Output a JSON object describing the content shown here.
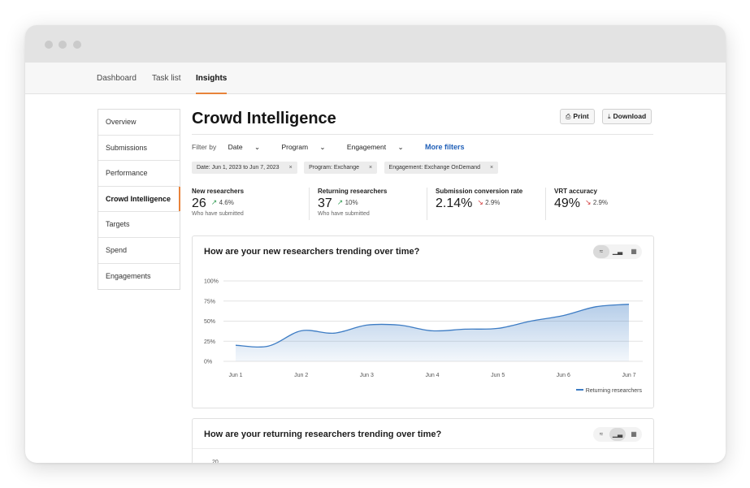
{
  "nav": {
    "tabs": [
      {
        "label": "Dashboard"
      },
      {
        "label": "Task list"
      },
      {
        "label": "Insights"
      }
    ]
  },
  "sidebar": {
    "items": [
      {
        "label": "Overview"
      },
      {
        "label": "Submissions"
      },
      {
        "label": "Performance"
      },
      {
        "label": "Crowd Intelligence"
      },
      {
        "label": "Targets"
      },
      {
        "label": "Spend"
      },
      {
        "label": "Engagements"
      }
    ]
  },
  "page": {
    "title": "Crowd Intelligence",
    "print_label": "Print",
    "download_label": "Download"
  },
  "filters": {
    "filter_by": "Filter by",
    "date": "Date",
    "program": "Program",
    "engagement": "Engagement",
    "more": "More filters",
    "chips": [
      {
        "label": "Date: Jun 1, 2023 to Jun 7, 2023"
      },
      {
        "label": "Program: Exchange"
      },
      {
        "label": "Engagement: Exchange OnDemand"
      }
    ]
  },
  "metrics": [
    {
      "label": "New researchers",
      "value": "26",
      "delta": "4.6%",
      "trend": "up",
      "sub": "Who have submitted"
    },
    {
      "label": "Returning researchers",
      "value": "37",
      "delta": "10%",
      "trend": "up",
      "sub": "Who have submitted"
    },
    {
      "label": "Submission conversion rate",
      "value": "2.14%",
      "delta": "2.9%",
      "trend": "down",
      "sub": ""
    },
    {
      "label": "VRT accuracy",
      "value": "49%",
      "delta": "2.9%",
      "trend": "down",
      "sub": ""
    }
  ],
  "cards": {
    "new_title": "How are your new researchers trending over time?",
    "returning_title": "How are your returning researchers trending over time?",
    "returning_first_tick": "20"
  },
  "colors": {
    "accent": "#e8833a",
    "link": "#1f5fb8",
    "series": "#3d7cc4"
  },
  "chart_data": {
    "type": "area",
    "title": "How are your new researchers trending over time?",
    "x": [
      "Jun 1",
      "Jun 2",
      "Jun 3",
      "Jun 4",
      "Jun 5",
      "Jun 6",
      "Jun 7"
    ],
    "y_ticks": [
      "100%",
      "75%",
      "50%",
      "25%",
      "0%"
    ],
    "ylim": [
      0,
      100
    ],
    "grid": true,
    "legend_position": "bottom-right",
    "series": [
      {
        "name": "Returning researchers",
        "x": [
          1,
          1.5,
          2,
          2.5,
          3,
          3.5,
          4,
          4.5,
          5,
          5.5,
          6,
          6.5,
          7
        ],
        "y": [
          20,
          19,
          38,
          35,
          45,
          45,
          38,
          40,
          41,
          50,
          57,
          68,
          71
        ]
      }
    ]
  }
}
